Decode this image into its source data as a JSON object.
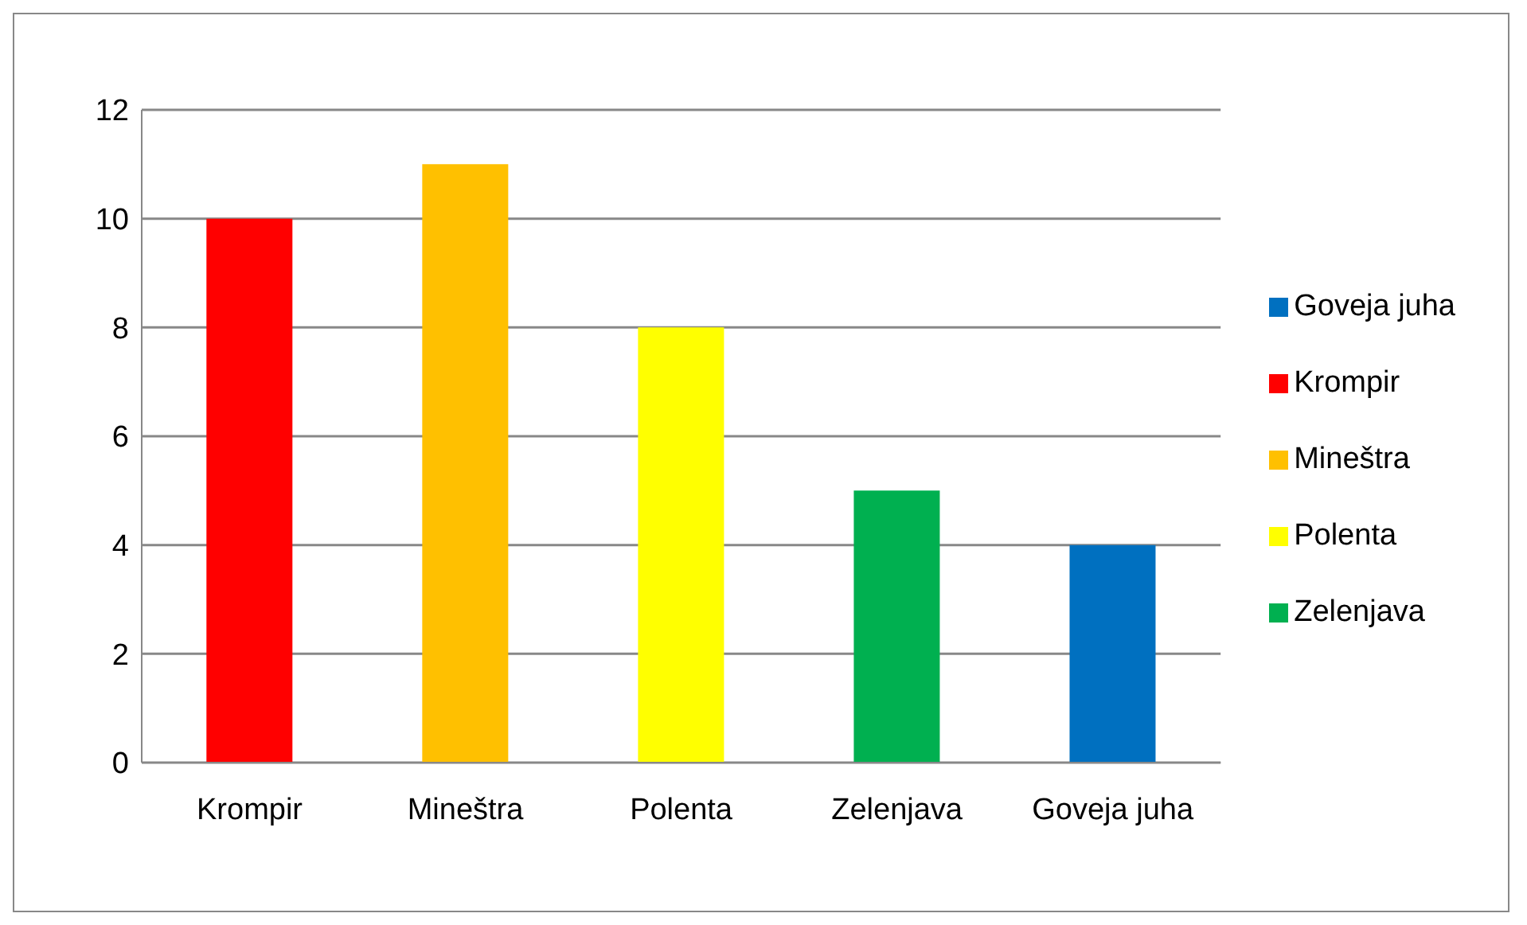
{
  "chart_data": {
    "type": "bar",
    "stacked": true,
    "categories": [
      "Krompir",
      "Mineštra",
      "Polenta",
      "Zelenjava",
      "Goveja juha"
    ],
    "series": [
      {
        "name": "Krompir",
        "color": "#ff0000",
        "values": [
          10,
          null,
          null,
          null,
          null
        ]
      },
      {
        "name": "Mineštra",
        "color": "#ffc000",
        "values": [
          null,
          11,
          null,
          null,
          null
        ]
      },
      {
        "name": "Polenta",
        "color": "#ffff00",
        "values": [
          null,
          null,
          8,
          null,
          null
        ]
      },
      {
        "name": "Zelenjava",
        "color": "#00b050",
        "values": [
          null,
          null,
          null,
          5,
          null
        ]
      },
      {
        "name": "Goveja juha",
        "color": "#0070c0",
        "values": [
          null,
          null,
          null,
          null,
          4
        ]
      }
    ],
    "ylim": [
      0,
      12
    ],
    "yticks": [
      0,
      2,
      4,
      6,
      8,
      10,
      12
    ],
    "grid": "y",
    "legend": "right"
  }
}
